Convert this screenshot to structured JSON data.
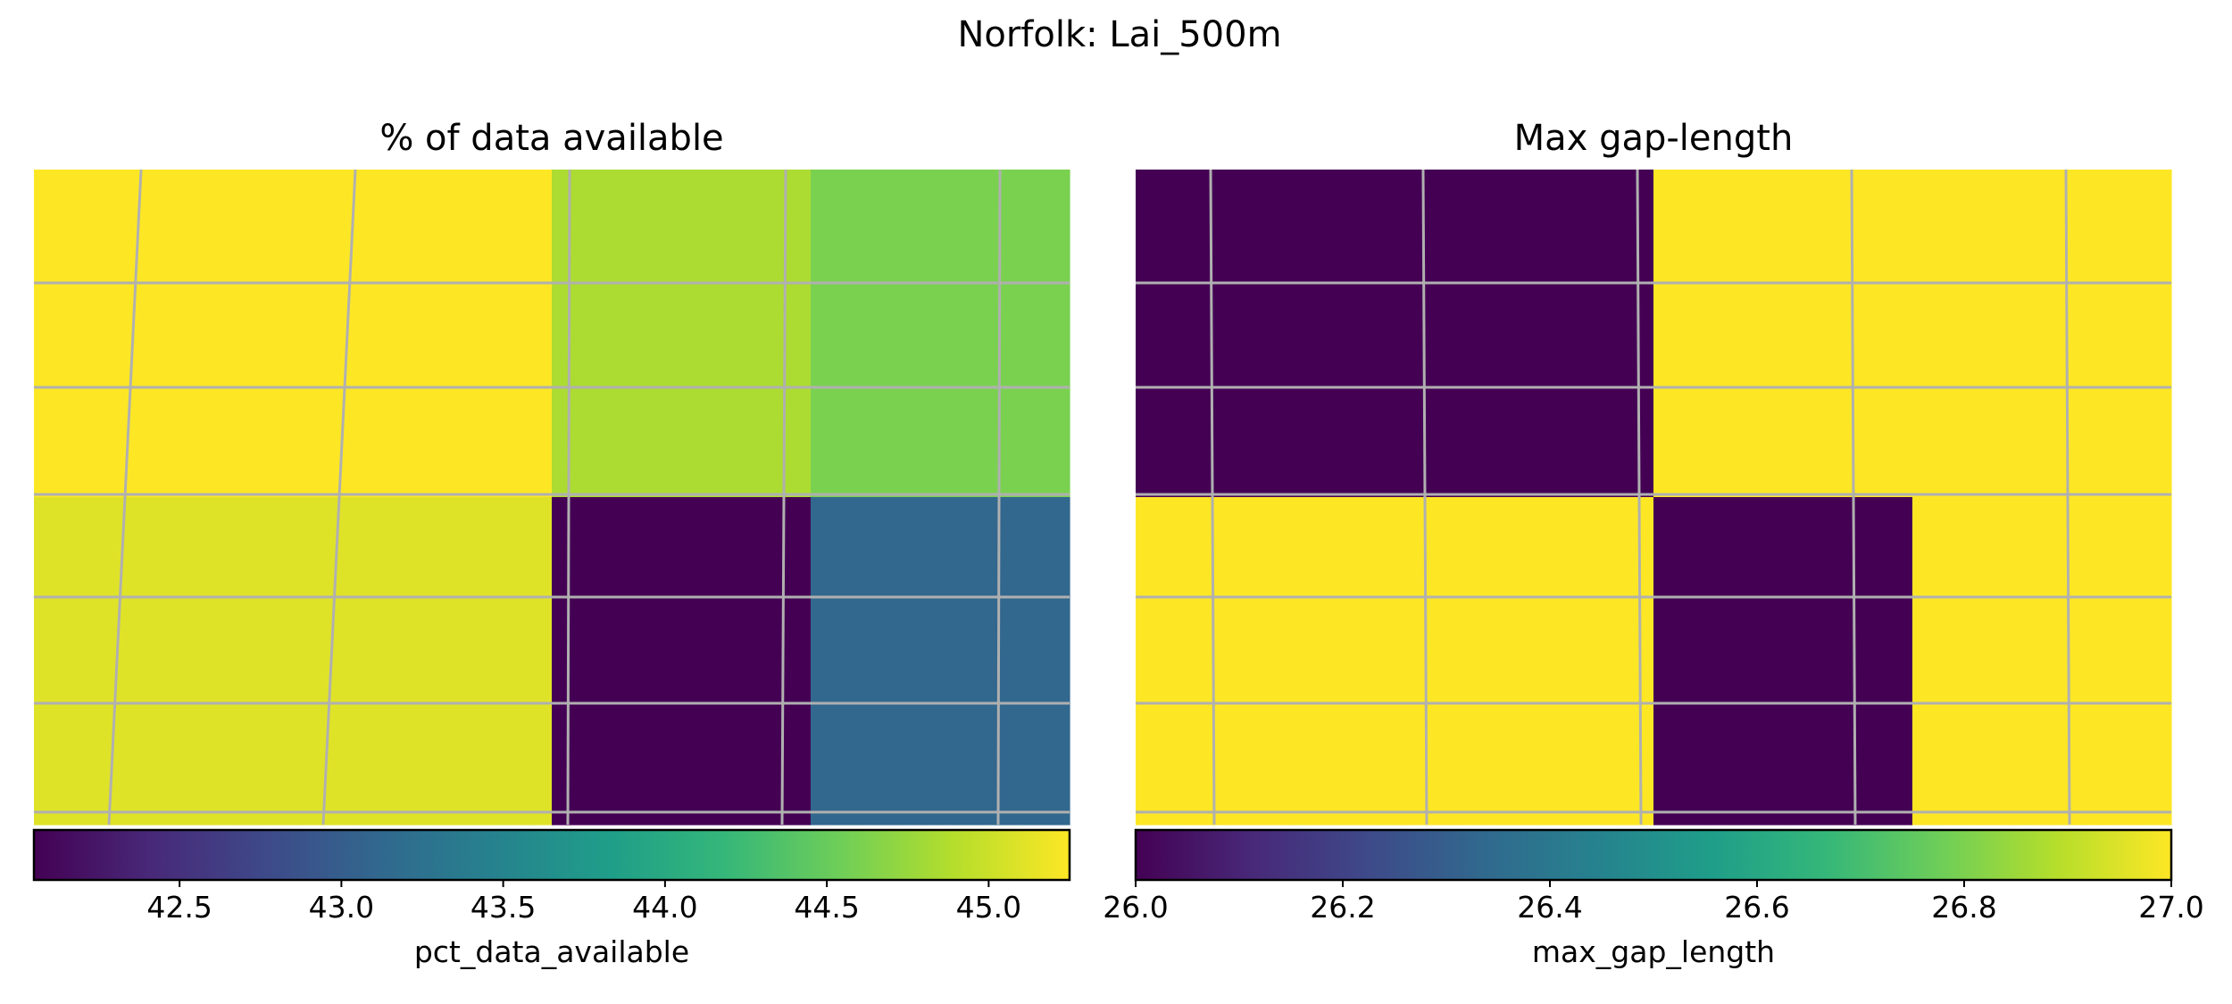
{
  "figure": {
    "title": "Norfolk: Lai_500m"
  },
  "colormap": {
    "name": "viridis",
    "stops": [
      "#440154",
      "#482878",
      "#3e4989",
      "#31688e",
      "#26828e",
      "#1f9e89",
      "#35b779",
      "#6ece58",
      "#b5de2b",
      "#fde725"
    ]
  },
  "chart_data": [
    {
      "type": "heatmap",
      "title": "% of data available",
      "colorbar_label": "pct_data_available",
      "vmin": 42.05,
      "vmax": 45.25,
      "colorbar_ticks": [
        "42.5",
        "43.0",
        "43.5",
        "44.0",
        "44.5",
        "45.0"
      ],
      "colorbar_tick_values": [
        42.5,
        43.0,
        43.5,
        44.0,
        44.5,
        45.0
      ],
      "grid": true,
      "rows": 2,
      "cols": 4,
      "values": [
        [
          45.25,
          45.25,
          44.85,
          44.6
        ],
        [
          45.1,
          45.1,
          42.05,
          43.1
        ]
      ]
    },
    {
      "type": "heatmap",
      "title": "Max gap-length",
      "colorbar_label": "max_gap_length",
      "vmin": 26.0,
      "vmax": 27.0,
      "colorbar_ticks": [
        "26.0",
        "26.2",
        "26.4",
        "26.6",
        "26.8",
        "27.0"
      ],
      "colorbar_tick_values": [
        26.0,
        26.2,
        26.4,
        26.6,
        26.8,
        27.0
      ],
      "grid": true,
      "rows": 2,
      "cols": 4,
      "values": [
        [
          26.0,
          26.0,
          27.0,
          27.0
        ],
        [
          27.0,
          27.0,
          26.0,
          27.0
        ]
      ]
    }
  ]
}
